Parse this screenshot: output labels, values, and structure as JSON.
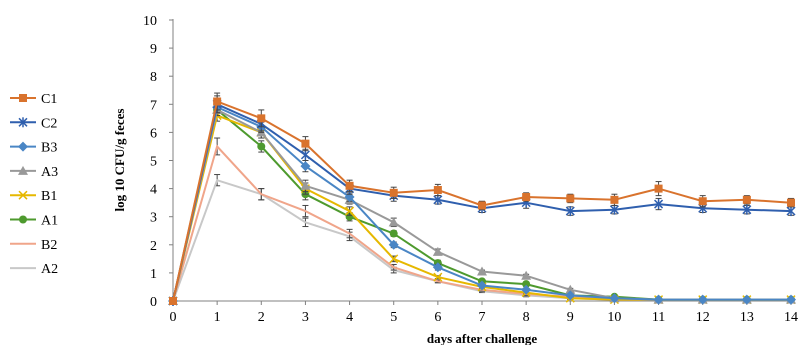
{
  "chart_data": {
    "type": "line",
    "xlabel": "days after challenge",
    "ylabel": "log 10 CFU/g feces",
    "xlim": [
      0,
      14
    ],
    "ylim": [
      0,
      10
    ],
    "x_ticks": [
      0,
      1,
      2,
      3,
      4,
      5,
      6,
      7,
      8,
      9,
      10,
      11,
      12,
      13,
      14
    ],
    "y_ticks": [
      0,
      1,
      2,
      3,
      4,
      5,
      6,
      7,
      8,
      9,
      10
    ],
    "grid": false,
    "legend_position": "left",
    "x": [
      0,
      1,
      2,
      3,
      4,
      5,
      6,
      7,
      8,
      9,
      10,
      11,
      12,
      13,
      14
    ],
    "series": [
      {
        "name": "C1",
        "color": "#d9732d",
        "marker": "square",
        "values": [
          0,
          7.1,
          6.5,
          5.6,
          4.1,
          3.85,
          3.95,
          3.4,
          3.7,
          3.65,
          3.6,
          4.0,
          3.55,
          3.6,
          3.5
        ],
        "errors": [
          0.1,
          0.3,
          0.3,
          0.25,
          0.2,
          0.2,
          0.2,
          0.15,
          0.15,
          0.15,
          0.2,
          0.25,
          0.2,
          0.15,
          0.15
        ]
      },
      {
        "name": "C2",
        "color": "#2f5fae",
        "marker": "asterisk",
        "values": [
          0,
          7.0,
          6.3,
          5.2,
          4.0,
          3.75,
          3.6,
          3.3,
          3.5,
          3.2,
          3.25,
          3.45,
          3.3,
          3.25,
          3.2
        ],
        "errors": [
          0.1,
          0.3,
          0.25,
          0.2,
          0.2,
          0.2,
          0.15,
          0.15,
          0.2,
          0.15,
          0.15,
          0.2,
          0.15,
          0.15,
          0.15
        ]
      },
      {
        "name": "B3",
        "color": "#4a86c5",
        "marker": "diamond",
        "values": [
          0,
          6.9,
          6.2,
          4.8,
          3.7,
          2.0,
          1.2,
          0.55,
          0.4,
          0.2,
          0.1,
          0.05,
          0.05,
          0.05,
          0.05
        ],
        "errors": [
          0.1,
          0.2,
          0.2,
          0.2,
          0.15,
          0.1,
          0.1,
          0.05,
          0.05,
          0.05,
          0.05,
          0.02,
          0.02,
          0.02,
          0.02
        ]
      },
      {
        "name": "A3",
        "color": "#999999",
        "marker": "triangle",
        "values": [
          0,
          6.8,
          6.0,
          4.1,
          3.6,
          2.8,
          1.75,
          1.05,
          0.9,
          0.4,
          0.1,
          0.05,
          0.05,
          0.05,
          0.05
        ],
        "errors": [
          0.1,
          0.2,
          0.2,
          0.2,
          0.15,
          0.15,
          0.1,
          0.05,
          0.05,
          0.05,
          0.05,
          0.02,
          0.02,
          0.02,
          0.02
        ]
      },
      {
        "name": "B1",
        "color": "#e6b800",
        "marker": "x",
        "values": [
          0,
          6.6,
          6.0,
          4.0,
          3.2,
          1.5,
          0.85,
          0.5,
          0.3,
          0.1,
          0.05,
          0.05,
          0.05,
          0.05,
          0.05
        ],
        "errors": [
          0.1,
          0.2,
          0.2,
          0.2,
          0.15,
          0.1,
          0.05,
          0.05,
          0.05,
          0.05,
          0.02,
          0.02,
          0.02,
          0.02,
          0.02
        ]
      },
      {
        "name": "A1",
        "color": "#4e9a2e",
        "marker": "circle",
        "values": [
          0,
          6.8,
          5.5,
          3.8,
          3.0,
          2.4,
          1.35,
          0.7,
          0.6,
          0.2,
          0.15,
          0.05,
          0.05,
          0.05,
          0.05
        ],
        "errors": [
          0.1,
          0.2,
          0.2,
          0.2,
          0.15,
          0.1,
          0.1,
          0.05,
          0.05,
          0.05,
          0.05,
          0.02,
          0.02,
          0.02,
          0.02
        ]
      },
      {
        "name": "B2",
        "color": "#f0a58a",
        "marker": "none",
        "values": [
          0,
          5.5,
          3.8,
          3.2,
          2.4,
          1.2,
          0.7,
          0.4,
          0.25,
          0.15,
          0.05,
          0.05,
          0.05,
          0.05,
          0.05
        ],
        "errors": [
          0.1,
          0.3,
          0.2,
          0.2,
          0.15,
          0.1,
          0.05,
          0.05,
          0.05,
          0.05,
          0.02,
          0.02,
          0.02,
          0.02,
          0.02
        ]
      },
      {
        "name": "A2",
        "color": "#c8c8c8",
        "marker": "none",
        "values": [
          0,
          4.3,
          3.8,
          2.8,
          2.3,
          1.1,
          0.7,
          0.35,
          0.2,
          0.1,
          0.05,
          0.05,
          0.05,
          0.05,
          0.05
        ],
        "errors": [
          0.1,
          0.2,
          0.2,
          0.15,
          0.15,
          0.1,
          0.05,
          0.05,
          0.05,
          0.05,
          0.02,
          0.02,
          0.02,
          0.02,
          0.02
        ]
      }
    ]
  }
}
